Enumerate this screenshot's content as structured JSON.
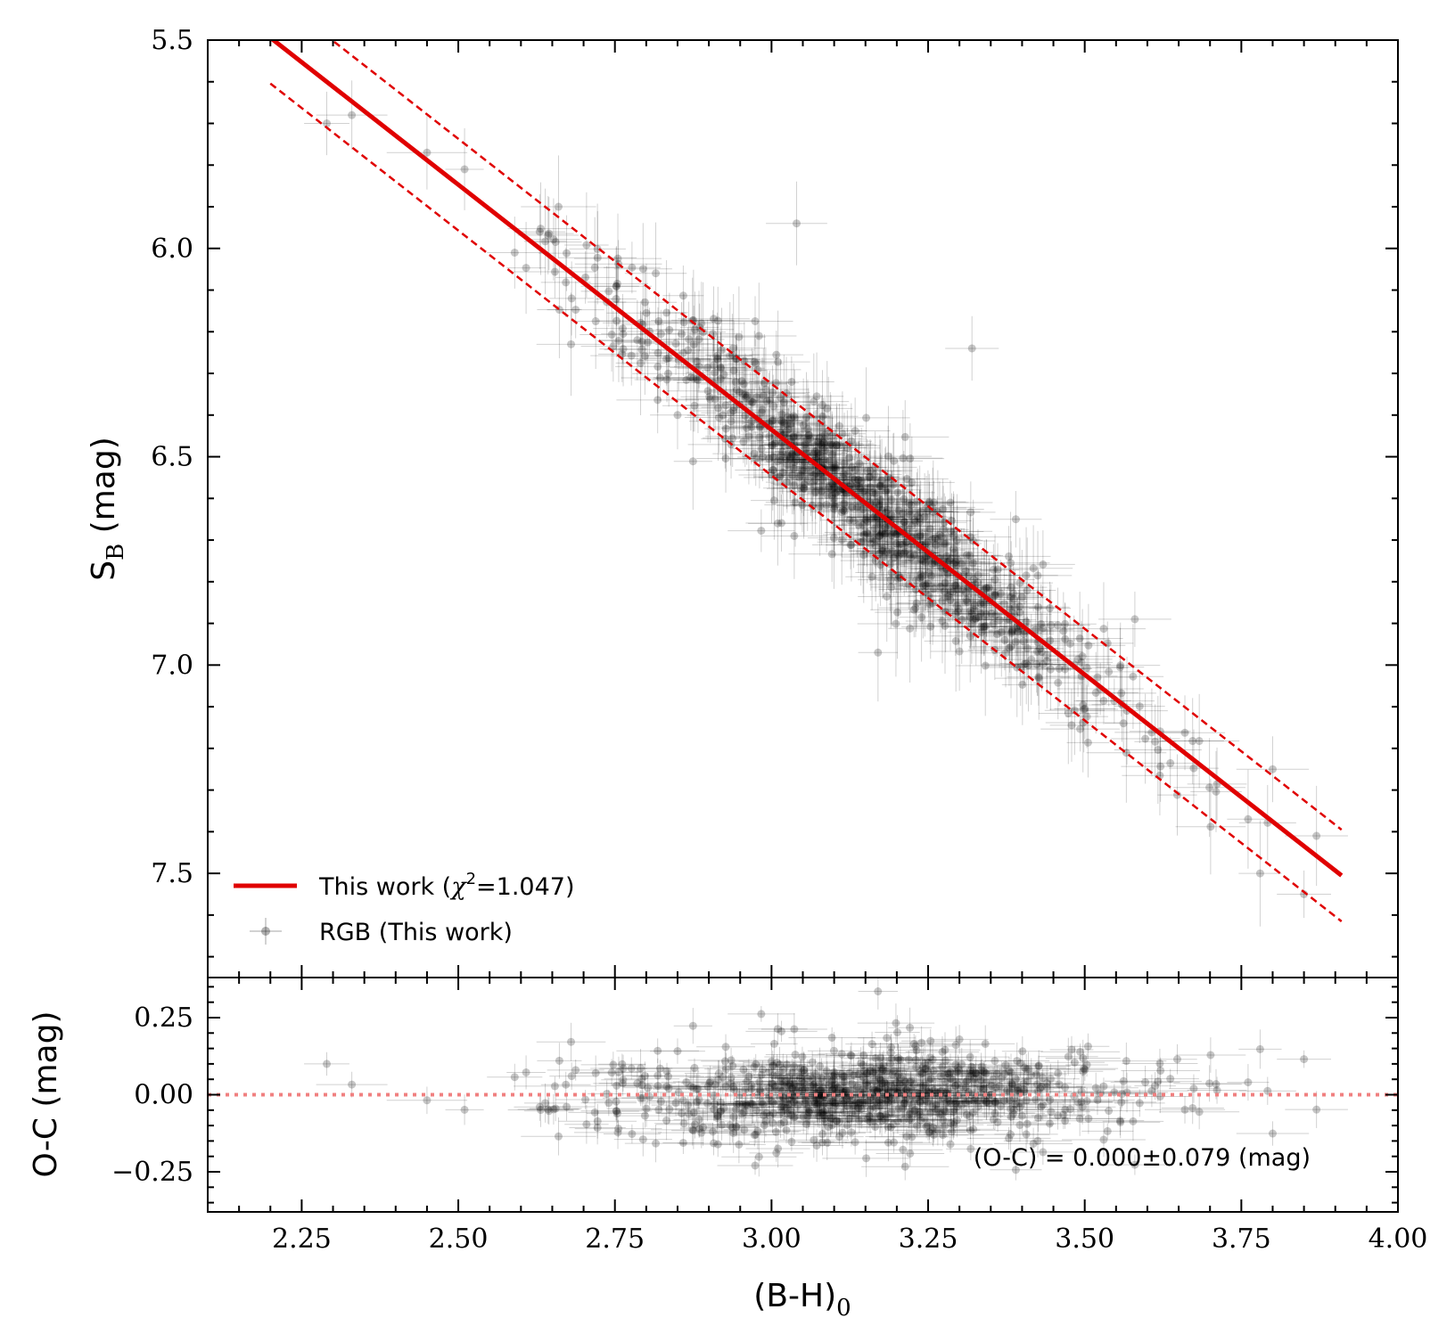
{
  "chart_data": {
    "type": "scatter",
    "top_panel": {
      "ylabel_main": "S",
      "ylabel_sub": "B",
      "ylabel_unit": "(mag)",
      "xlim": [
        2.1,
        4.0
      ],
      "ylim": [
        7.75,
        5.5
      ],
      "y_inverted": true,
      "yticks": [
        "5.5",
        "6.0",
        "6.5",
        "7.0",
        "7.5"
      ],
      "ytick_values": [
        5.5,
        6.0,
        6.5,
        7.0,
        7.5
      ],
      "fit": {
        "name": "This work",
        "slope": 1.176,
        "intercept": 2.907,
        "x_range": [
          2.2,
          3.91
        ],
        "scatter_band": 0.11,
        "color": "#e00000"
      },
      "legend": {
        "position": "lower-left",
        "fit_label_prefix": "This work (",
        "fit_label_chi": "χ",
        "fit_label_sup": "2",
        "fit_label_suffix": "=1.047)",
        "points_label": "RGB (This work)"
      },
      "outliers": [
        {
          "x": 3.04,
          "y": 5.94
        },
        {
          "x": 3.32,
          "y": 6.24
        },
        {
          "x": 2.98,
          "y": 6.21
        },
        {
          "x": 3.17,
          "y": 6.97
        },
        {
          "x": 3.01,
          "y": 6.66
        },
        {
          "x": 3.39,
          "y": 6.65
        },
        {
          "x": 3.58,
          "y": 6.89
        }
      ],
      "example_points": [
        {
          "x": 2.29,
          "y": 5.7
        },
        {
          "x": 2.33,
          "y": 5.68
        },
        {
          "x": 2.51,
          "y": 5.81
        },
        {
          "x": 2.45,
          "y": 5.77
        },
        {
          "x": 2.66,
          "y": 5.9
        },
        {
          "x": 2.63,
          "y": 5.96
        },
        {
          "x": 2.59,
          "y": 6.01
        },
        {
          "x": 2.68,
          "y": 6.23
        },
        {
          "x": 2.85,
          "y": 6.4
        },
        {
          "x": 3.78,
          "y": 7.5
        },
        {
          "x": 3.85,
          "y": 7.55
        },
        {
          "x": 3.87,
          "y": 7.41
        },
        {
          "x": 3.8,
          "y": 7.25
        }
      ],
      "n_points": 850,
      "point_color": "#000000"
    },
    "bottom_panel": {
      "ylabel": "O-C (mag)",
      "ylim": [
        -0.38,
        0.38
      ],
      "yticks": [
        "0.25",
        "0.00",
        "−0.25"
      ],
      "ytick_values": [
        0.25,
        0.0,
        -0.25
      ],
      "zero_line_color": "#f08080",
      "annotation": "(O-C) = 0.000±0.079 (mag)",
      "mean": 0.0,
      "std": 0.079
    },
    "xlabel_main": "(B-H)",
    "xlabel_sub": "0",
    "xlim": [
      2.1,
      4.0
    ],
    "xticks": [
      "2.25",
      "2.50",
      "2.75",
      "3.00",
      "3.25",
      "3.50",
      "3.75",
      "4.00"
    ],
    "xtick_values": [
      2.25,
      2.5,
      2.75,
      3.0,
      3.25,
      3.5,
      3.75,
      4.0
    ]
  }
}
